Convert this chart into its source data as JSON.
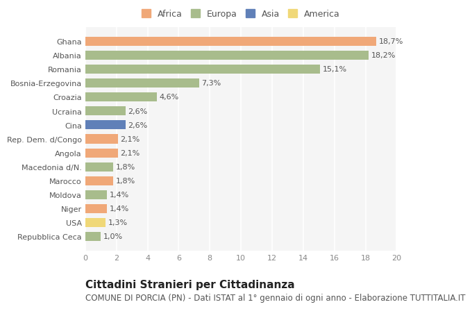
{
  "categories": [
    "Ghana",
    "Albania",
    "Romania",
    "Bosnia-Erzegovina",
    "Croazia",
    "Ucraina",
    "Cina",
    "Rep. Dem. d/Congo",
    "Angola",
    "Macedonia d/N.",
    "Marocco",
    "Moldova",
    "Niger",
    "USA",
    "Repubblica Ceca"
  ],
  "values": [
    18.7,
    18.2,
    15.1,
    7.3,
    4.6,
    2.6,
    2.6,
    2.1,
    2.1,
    1.8,
    1.8,
    1.4,
    1.4,
    1.3,
    1.0
  ],
  "labels": [
    "18,7%",
    "18,2%",
    "15,1%",
    "7,3%",
    "4,6%",
    "2,6%",
    "2,6%",
    "2,1%",
    "2,1%",
    "1,8%",
    "1,8%",
    "1,4%",
    "1,4%",
    "1,3%",
    "1,0%"
  ],
  "colors": [
    "#f0a878",
    "#a8bc8c",
    "#a8bc8c",
    "#a8bc8c",
    "#a8bc8c",
    "#a8bc8c",
    "#6080b8",
    "#f0a878",
    "#f0a878",
    "#a8bc8c",
    "#f0a878",
    "#a8bc8c",
    "#f0a878",
    "#f0d878",
    "#a8bc8c"
  ],
  "legend_labels": [
    "Africa",
    "Europa",
    "Asia",
    "America"
  ],
  "legend_colors": [
    "#f0a878",
    "#a8bc8c",
    "#6080b8",
    "#f0d878"
  ],
  "title": "Cittadini Stranieri per Cittadinanza",
  "subtitle": "COMUNE DI PORCIA (PN) - Dati ISTAT al 1° gennaio di ogni anno - Elaborazione TUTTITALIA.IT",
  "xlim": [
    0,
    20
  ],
  "xticks": [
    0,
    2,
    4,
    6,
    8,
    10,
    12,
    14,
    16,
    18,
    20
  ],
  "bg_color": "#ffffff",
  "plot_bg_color": "#f5f5f5",
  "grid_color": "#ffffff",
  "bar_height": 0.65,
  "title_fontsize": 11,
  "subtitle_fontsize": 8.5,
  "label_fontsize": 8,
  "tick_fontsize": 8,
  "legend_fontsize": 9
}
